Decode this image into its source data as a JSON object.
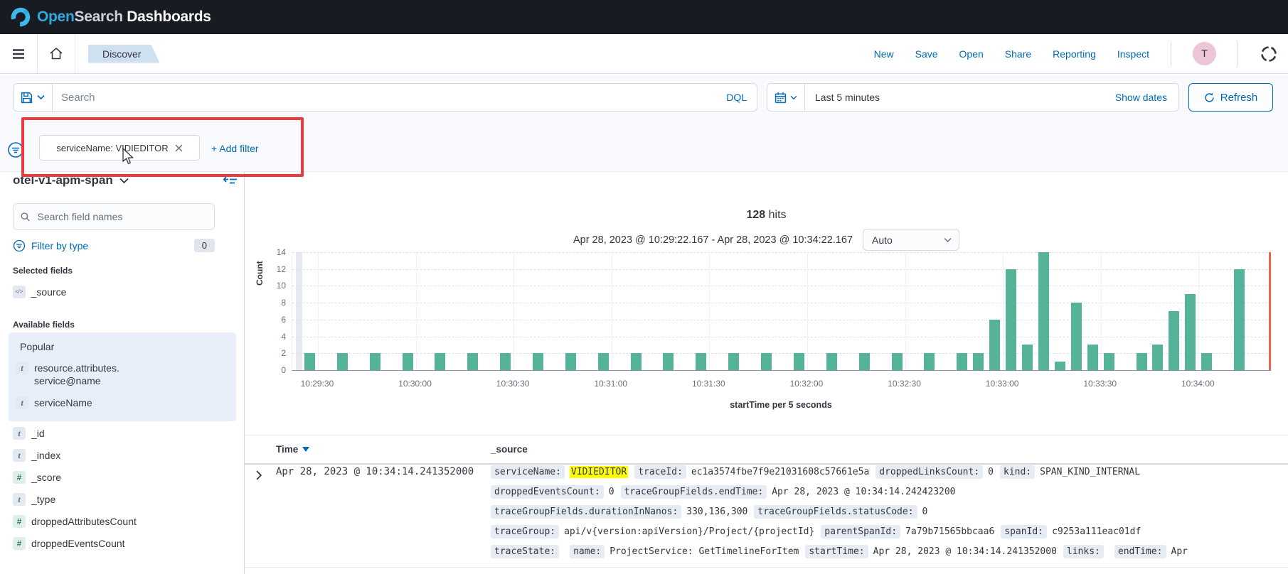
{
  "banner": {
    "brand_open": "Open",
    "brand_search": "Search",
    "brand_rest": " Dashboards"
  },
  "nav": {
    "breadcrumb": "Discover",
    "links": [
      "New",
      "Save",
      "Open",
      "Share",
      "Reporting",
      "Inspect"
    ],
    "avatar_initial": "T"
  },
  "query_bar": {
    "search_placeholder": "Search",
    "language": "DQL",
    "time_range": "Last 5 minutes",
    "show_dates_label": "Show dates",
    "refresh_label": "Refresh"
  },
  "filter_bar": {
    "pill_label": "serviceName: VIDIEDITOR",
    "add_filter_label": "+ Add filter"
  },
  "sidebar": {
    "index_pattern": "otel-v1-apm-span",
    "search_placeholder": "Search field names",
    "filter_by_type_label": "Filter by type",
    "filter_count": "0",
    "selected_heading": "Selected fields",
    "selected_fields": [
      {
        "type": "src",
        "name": "_source"
      }
    ],
    "available_heading": "Available fields",
    "popular_heading": "Popular",
    "popular_fields": [
      {
        "type": "t",
        "name": "resource.attributes.service@name"
      },
      {
        "type": "t",
        "name": "serviceName"
      }
    ],
    "fields": [
      {
        "type": "t",
        "name": "_id"
      },
      {
        "type": "t",
        "name": "_index"
      },
      {
        "type": "num",
        "name": "_score"
      },
      {
        "type": "t",
        "name": "_type"
      },
      {
        "type": "num",
        "name": "droppedAttributesCount"
      },
      {
        "type": "num",
        "name": "droppedEventsCount"
      }
    ]
  },
  "results_header": {
    "hits_count": "128",
    "hits_label": "hits",
    "range_label": "Apr 28, 2023 @ 10:29:22.167 - Apr 28, 2023 @ 10:34:22.167",
    "interval_value": "Auto"
  },
  "chart_data": {
    "type": "bar",
    "title": "128 hits",
    "xlabel": "startTime per 5 seconds",
    "ylabel": "Count",
    "ylim": [
      0,
      14
    ],
    "yticks": [
      0,
      2,
      4,
      6,
      8,
      10,
      12,
      14
    ],
    "x_domain": [
      "10:29:22.167",
      "10:34:22.167"
    ],
    "xticks": [
      "10:29:30",
      "10:30:00",
      "10:30:30",
      "10:31:00",
      "10:31:30",
      "10:32:00",
      "10:32:30",
      "10:33:00",
      "10:33:30",
      "10:34:00"
    ],
    "bucket_seconds": 5,
    "time_marker": "10:34:22",
    "legend": "off",
    "grid": "on",
    "buckets": [
      [
        "10:29:25",
        2
      ],
      [
        "10:29:35",
        2
      ],
      [
        "10:29:45",
        2
      ],
      [
        "10:29:55",
        2
      ],
      [
        "10:30:05",
        2
      ],
      [
        "10:30:15",
        2
      ],
      [
        "10:30:25",
        2
      ],
      [
        "10:30:35",
        2
      ],
      [
        "10:30:45",
        2
      ],
      [
        "10:30:55",
        2
      ],
      [
        "10:31:05",
        2
      ],
      [
        "10:31:15",
        2
      ],
      [
        "10:31:25",
        2
      ],
      [
        "10:31:35",
        2
      ],
      [
        "10:31:45",
        2
      ],
      [
        "10:31:55",
        2
      ],
      [
        "10:32:05",
        2
      ],
      [
        "10:32:15",
        2
      ],
      [
        "10:32:25",
        2
      ],
      [
        "10:32:35",
        2
      ],
      [
        "10:32:45",
        2
      ],
      [
        "10:32:50",
        2
      ],
      [
        "10:32:55",
        6
      ],
      [
        "10:33:00",
        12
      ],
      [
        "10:33:05",
        3
      ],
      [
        "10:33:10",
        14
      ],
      [
        "10:33:15",
        1
      ],
      [
        "10:33:20",
        8
      ],
      [
        "10:33:25",
        3
      ],
      [
        "10:33:30",
        2
      ],
      [
        "10:33:40",
        2
      ],
      [
        "10:33:45",
        3
      ],
      [
        "10:33:50",
        7
      ],
      [
        "10:33:55",
        9
      ],
      [
        "10:34:00",
        2
      ],
      [
        "10:34:10",
        12
      ]
    ]
  },
  "table": {
    "time_column": "Time",
    "source_column": "_source",
    "row": {
      "time": "Apr 28, 2023 @ 10:34:14.241352000",
      "source_lines": [
        [
          {
            "f": "serviceName:"
          },
          {
            "v": "VIDIEDITOR",
            "hl": true
          },
          {
            "f": "traceId:"
          },
          {
            "v": "ec1a3574fbe7f9e21031608c57661e5a"
          },
          {
            "f": "droppedLinksCount:"
          },
          {
            "v": "0"
          },
          {
            "f": "kind:"
          },
          {
            "v": "SPAN_KIND_INTERNAL"
          }
        ],
        [
          {
            "f": "droppedEventsCount:"
          },
          {
            "v": "0"
          },
          {
            "f": "traceGroupFields.endTime:"
          },
          {
            "v": "Apr 28, 2023 @ 10:34:14.242423200"
          }
        ],
        [
          {
            "f": "traceGroupFields.durationInNanos:"
          },
          {
            "v": "330,136,300"
          },
          {
            "f": "traceGroupFields.statusCode:"
          },
          {
            "v": "0"
          }
        ],
        [
          {
            "f": "traceGroup:"
          },
          {
            "v": "api/v{version:apiVersion}/Project/{projectId}"
          },
          {
            "f": "parentSpanId:"
          },
          {
            "v": "7a79b71565bbcaa6"
          },
          {
            "f": "spanId:"
          },
          {
            "v": "c9253a111eac01df"
          }
        ],
        [
          {
            "f": "traceState:"
          },
          {
            "v": ""
          },
          {
            "f": "name:"
          },
          {
            "v": "ProjectService: GetTimelineForItem"
          },
          {
            "f": "startTime:"
          },
          {
            "v": "Apr 28, 2023 @ 10:34:14.241352000"
          },
          {
            "f": "links:"
          },
          {
            "v": ""
          },
          {
            "f": "endTime:"
          },
          {
            "v": "Apr"
          }
        ]
      ]
    }
  },
  "colors": {
    "banner_bg": "#181b21",
    "accent_blue": "#006BB4",
    "bar_teal": "#54B399",
    "time_marker_red": "#e7664c",
    "annotation_red": "#ee3b41",
    "highlight_yellow": "#ffff00",
    "avatar_pink": "#edc5d8",
    "breadcrumb_bg": "#cfe0f1"
  }
}
